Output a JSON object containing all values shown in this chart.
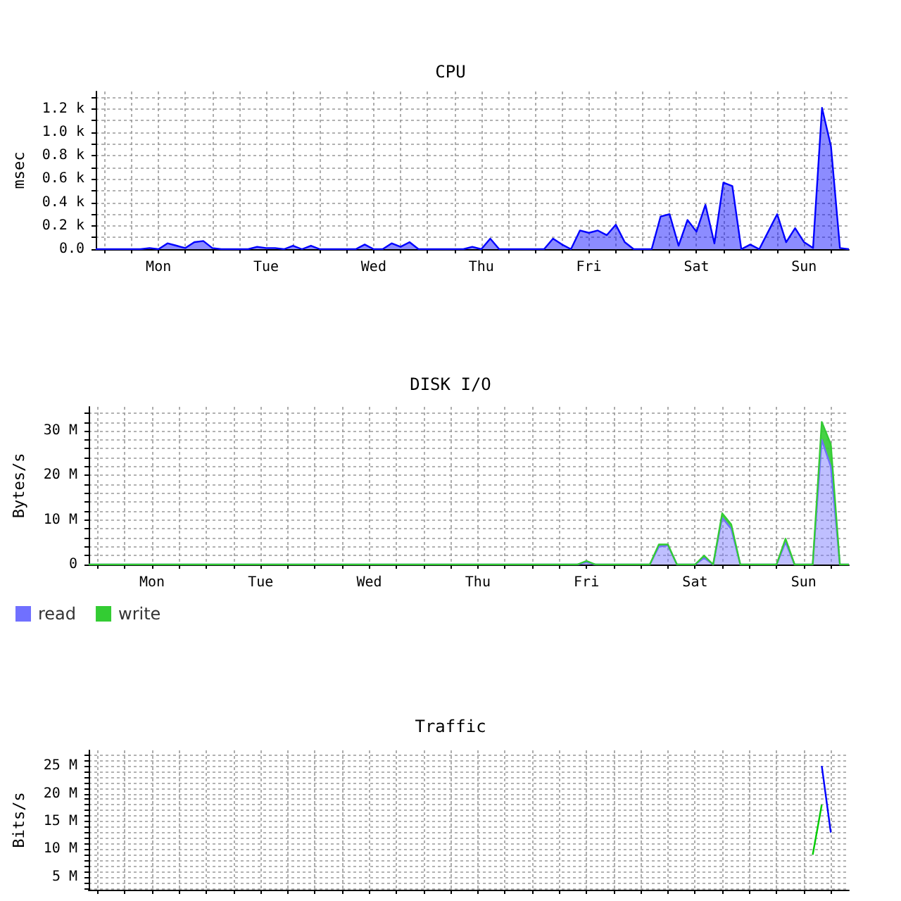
{
  "chart_data": [
    {
      "type": "area",
      "title": "CPU",
      "ylabel": "msec",
      "grid": true,
      "marker": "none",
      "categories": [
        null,
        null,
        null,
        null,
        null,
        null,
        null,
        "Mon",
        null,
        null,
        null,
        null,
        null,
        null,
        null,
        null,
        null,
        null,
        null,
        "Tue",
        null,
        null,
        null,
        null,
        null,
        null,
        null,
        null,
        null,
        null,
        null,
        "Wed",
        null,
        null,
        null,
        null,
        null,
        null,
        null,
        null,
        null,
        null,
        null,
        "Thu",
        null,
        null,
        null,
        null,
        null,
        null,
        null,
        null,
        null,
        null,
        null,
        "Fri",
        null,
        null,
        null,
        null,
        null,
        null,
        null,
        null,
        null,
        null,
        null,
        "Sat",
        null,
        null,
        null,
        null,
        null,
        null,
        null,
        null,
        null,
        null,
        null,
        "Sun",
        null,
        null,
        null,
        null,
        null
      ],
      "ylim": [
        0,
        1350
      ],
      "yticks": [
        {
          "value": 0,
          "label": "0.0"
        },
        {
          "value": 100,
          "label": null
        },
        {
          "value": 200,
          "label": "0.2 k"
        },
        {
          "value": 300,
          "label": null
        },
        {
          "value": 400,
          "label": "0.4 k"
        },
        {
          "value": 500,
          "label": null
        },
        {
          "value": 600,
          "label": "0.6 k"
        },
        {
          "value": 700,
          "label": null
        },
        {
          "value": 800,
          "label": "0.8 k"
        },
        {
          "value": 900,
          "label": null
        },
        {
          "value": 1000,
          "label": "1.0 k"
        },
        {
          "value": 1100,
          "label": null
        },
        {
          "value": 1200,
          "label": "1.2 k"
        },
        {
          "value": 1300,
          "label": null
        }
      ],
      "series": [
        {
          "color": "#0000ff",
          "values": [
            0,
            0,
            0,
            0,
            0,
            0,
            10,
            0,
            50,
            30,
            10,
            60,
            70,
            10,
            0,
            0,
            0,
            0,
            20,
            10,
            10,
            0,
            30,
            0,
            30,
            0,
            0,
            0,
            0,
            0,
            40,
            0,
            0,
            50,
            20,
            60,
            0,
            0,
            0,
            0,
            0,
            0,
            20,
            0,
            90,
            0,
            0,
            0,
            0,
            0,
            0,
            90,
            40,
            0,
            160,
            140,
            160,
            120,
            210,
            60,
            0,
            0,
            0,
            280,
            300,
            30,
            250,
            150,
            380,
            50,
            570,
            540,
            0,
            40,
            0,
            150,
            300,
            60,
            180,
            60,
            10,
            1210,
            880,
            10,
            0
          ]
        }
      ]
    },
    {
      "type": "area",
      "title": "DISK I/O",
      "ylabel": "Bytes/s",
      "grid": true,
      "marker": "none",
      "stacked": true,
      "legend": "bottom left",
      "categories": [
        null,
        null,
        null,
        null,
        null,
        null,
        null,
        "Mon",
        null,
        null,
        null,
        null,
        null,
        null,
        null,
        null,
        null,
        null,
        null,
        "Tue",
        null,
        null,
        null,
        null,
        null,
        null,
        null,
        null,
        null,
        null,
        null,
        "Wed",
        null,
        null,
        null,
        null,
        null,
        null,
        null,
        null,
        null,
        null,
        null,
        "Thu",
        null,
        null,
        null,
        null,
        null,
        null,
        null,
        null,
        null,
        null,
        null,
        "Fri",
        null,
        null,
        null,
        null,
        null,
        null,
        null,
        null,
        null,
        null,
        null,
        "Sat",
        null,
        null,
        null,
        null,
        null,
        null,
        null,
        null,
        null,
        null,
        null,
        "Sun",
        null,
        null,
        null,
        null,
        null
      ],
      "ylim": [
        0,
        35400000
      ],
      "yticks": [
        {
          "value": 0,
          "label": "0"
        },
        {
          "value": 2000000,
          "label": null
        },
        {
          "value": 4000000,
          "label": null
        },
        {
          "value": 6000000,
          "label": null
        },
        {
          "value": 8000000,
          "label": null
        },
        {
          "value": 10000000,
          "label": "10 M"
        },
        {
          "value": 12000000,
          "label": null
        },
        {
          "value": 14000000,
          "label": null
        },
        {
          "value": 16000000,
          "label": null
        },
        {
          "value": 18000000,
          "label": null
        },
        {
          "value": 20000000,
          "label": "20 M"
        },
        {
          "value": 22000000,
          "label": null
        },
        {
          "value": 24000000,
          "label": null
        },
        {
          "value": 26000000,
          "label": null
        },
        {
          "value": 28000000,
          "label": null
        },
        {
          "value": 30000000,
          "label": "30 M"
        },
        {
          "value": 32000000,
          "label": null
        },
        {
          "value": 34000000,
          "label": null
        }
      ],
      "series": [
        {
          "name": "read",
          "color": "#7070ff",
          "values": [
            0,
            0,
            0,
            0,
            0,
            0,
            0,
            0,
            0,
            0,
            0,
            0,
            0,
            0,
            0,
            0,
            0,
            0,
            0,
            0,
            0,
            0,
            0,
            0,
            0,
            0,
            0,
            0,
            0,
            0,
            0,
            0,
            0,
            0,
            0,
            0,
            0,
            0,
            0,
            0,
            0,
            0,
            0,
            0,
            0,
            0,
            0,
            0,
            0,
            0,
            0,
            0,
            0,
            0,
            0,
            500000,
            0,
            0,
            0,
            0,
            0,
            0,
            0,
            4000000,
            4300000,
            0,
            0,
            0,
            1500000,
            0,
            10500000,
            8000000,
            0,
            0,
            0,
            0,
            0,
            5000000,
            0,
            0,
            0,
            28000000,
            22000000,
            0,
            0
          ]
        },
        {
          "name": "write",
          "color": "#33cc33",
          "values": [
            0,
            0,
            0,
            0,
            0,
            0,
            0,
            0,
            0,
            0,
            0,
            0,
            0,
            0,
            0,
            0,
            0,
            0,
            0,
            0,
            0,
            0,
            0,
            0,
            0,
            0,
            0,
            0,
            0,
            0,
            0,
            0,
            0,
            0,
            0,
            0,
            0,
            0,
            0,
            0,
            0,
            0,
            0,
            0,
            0,
            0,
            0,
            0,
            0,
            0,
            0,
            0,
            0,
            0,
            0,
            300000,
            0,
            0,
            0,
            0,
            0,
            0,
            0,
            500000,
            200000,
            0,
            0,
            0,
            500000,
            0,
            1000000,
            1000000,
            0,
            0,
            0,
            0,
            0,
            800000,
            0,
            0,
            0,
            4000000,
            5000000,
            0,
            0
          ]
        }
      ]
    },
    {
      "type": "line",
      "title": "Traffic",
      "ylabel": "Bits/s",
      "grid": true,
      "marker": "none",
      "categories": [
        null,
        null,
        null,
        null,
        null,
        null,
        null,
        null,
        null,
        null,
        null,
        null,
        null,
        null,
        null,
        null,
        null,
        null,
        null,
        null,
        null,
        null,
        null,
        null,
        null,
        null,
        null,
        null,
        null,
        null,
        null,
        null,
        null,
        null,
        null,
        null,
        null,
        null,
        null,
        null,
        null,
        null,
        null,
        null,
        null,
        null,
        null,
        null,
        null,
        null,
        null,
        null,
        null,
        null,
        null,
        null,
        null,
        null,
        null,
        null,
        null,
        null,
        null,
        null,
        null,
        null,
        null,
        null,
        null,
        null,
        null,
        null,
        null,
        null,
        null,
        null,
        null,
        null,
        null,
        null,
        null,
        null,
        null,
        null,
        null
      ],
      "ylim": [
        2700000,
        27800000
      ],
      "yticks": [
        {
          "value": 3000000,
          "label": null
        },
        {
          "value": 4000000,
          "label": null
        },
        {
          "value": 5000000,
          "label": "5 M"
        },
        {
          "value": 6000000,
          "label": null
        },
        {
          "value": 7000000,
          "label": null
        },
        {
          "value": 8000000,
          "label": null
        },
        {
          "value": 9000000,
          "label": null
        },
        {
          "value": 10000000,
          "label": "10 M"
        },
        {
          "value": 11000000,
          "label": null
        },
        {
          "value": 12000000,
          "label": null
        },
        {
          "value": 13000000,
          "label": null
        },
        {
          "value": 14000000,
          "label": null
        },
        {
          "value": 15000000,
          "label": "15 M"
        },
        {
          "value": 16000000,
          "label": null
        },
        {
          "value": 17000000,
          "label": null
        },
        {
          "value": 18000000,
          "label": null
        },
        {
          "value": 19000000,
          "label": null
        },
        {
          "value": 20000000,
          "label": "20 M"
        },
        {
          "value": 21000000,
          "label": null
        },
        {
          "value": 22000000,
          "label": null
        },
        {
          "value": 23000000,
          "label": null
        },
        {
          "value": 24000000,
          "label": null
        },
        {
          "value": 25000000,
          "label": "25 M"
        },
        {
          "value": 26000000,
          "label": null
        },
        {
          "value": 27000000,
          "label": null
        }
      ],
      "series": [
        {
          "color": "#00cc00",
          "values": [
            null,
            null,
            null,
            null,
            null,
            null,
            null,
            null,
            null,
            null,
            null,
            null,
            null,
            null,
            null,
            null,
            null,
            null,
            null,
            null,
            null,
            null,
            null,
            null,
            null,
            null,
            null,
            null,
            null,
            null,
            null,
            null,
            null,
            null,
            null,
            null,
            null,
            null,
            null,
            null,
            null,
            null,
            null,
            null,
            null,
            null,
            null,
            null,
            null,
            null,
            null,
            null,
            null,
            null,
            null,
            null,
            null,
            null,
            null,
            null,
            null,
            null,
            null,
            null,
            null,
            null,
            null,
            null,
            null,
            null,
            null,
            null,
            null,
            null,
            null,
            null,
            null,
            null,
            null,
            null,
            9000000,
            18000000,
            null,
            null,
            null
          ]
        },
        {
          "color": "#0000ff",
          "values": [
            null,
            null,
            null,
            null,
            null,
            null,
            null,
            null,
            null,
            null,
            null,
            null,
            null,
            null,
            null,
            null,
            null,
            null,
            null,
            null,
            null,
            null,
            null,
            null,
            null,
            null,
            null,
            null,
            null,
            null,
            null,
            null,
            null,
            null,
            null,
            null,
            null,
            null,
            null,
            null,
            null,
            null,
            null,
            null,
            null,
            null,
            null,
            null,
            null,
            null,
            null,
            null,
            null,
            null,
            null,
            null,
            null,
            null,
            null,
            null,
            null,
            null,
            null,
            null,
            null,
            null,
            null,
            null,
            null,
            null,
            null,
            null,
            null,
            null,
            null,
            null,
            null,
            null,
            null,
            null,
            null,
            25000000,
            13000000,
            null,
            null
          ]
        }
      ]
    }
  ]
}
